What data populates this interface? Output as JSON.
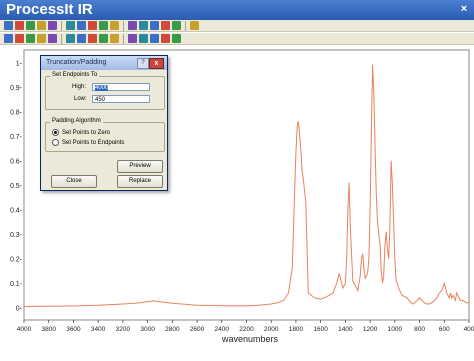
{
  "window": {
    "title": "ProcessIt IR",
    "close_glyph": "×"
  },
  "toolbar_row1": [
    "save-icon",
    "open-icon",
    "print-icon",
    "copy-icon",
    "cut-icon",
    "paste-icon",
    "undo-icon",
    "redo-icon",
    "zoom-in-icon",
    "zoom-out-icon",
    "pan-icon",
    "cursor-icon",
    "peak-icon",
    "baseline-icon",
    "integrate-icon",
    "close-icon"
  ],
  "toolbar_row2": [
    "arrow-icon",
    "grid-icon",
    "overlay-icon",
    "stack-icon",
    "color-icon",
    "label-icon",
    "flip-icon",
    "scale-icon",
    "smooth-icon",
    "derivative-icon",
    "bar-icon",
    "table-icon",
    "export-icon",
    "report-icon",
    "help-icon"
  ],
  "dialog": {
    "title": "Truncation/Padding",
    "help_glyph": "?",
    "close_glyph": "x",
    "endpoints_group": "Set Endpoints To",
    "high_label": "High:",
    "high_value": "4000",
    "low_label": "Low:",
    "low_value": "450",
    "padding_group": "Padding Algorithm",
    "radio_zero": "Set Points to Zero",
    "radio_endpoints": "Set Points to Endpoints",
    "preview_label": "Preview",
    "close_label": "Close",
    "replace_label": "Replace"
  },
  "chart_data": {
    "type": "line",
    "xlabel": "wavenumbers",
    "ylabel": "",
    "xlim": [
      4000,
      400
    ],
    "ylim": [
      -0.05,
      1.05
    ],
    "x_reversed": true,
    "xticks": [
      4000,
      3800,
      3600,
      3400,
      3200,
      3000,
      2800,
      2600,
      2400,
      2200,
      2000,
      1800,
      1600,
      1400,
      1200,
      1000,
      800,
      600,
      400
    ],
    "yticks": [
      0,
      0.1,
      0.2,
      0.3,
      0.4,
      0.5,
      0.6,
      0.7,
      0.8,
      0.9,
      1
    ],
    "ytick_labels": [
      "0-",
      "0.1-",
      "0.2-",
      "0.3-",
      "0.4-",
      "0.5-",
      "0.6-",
      "0.7-",
      "0.8-",
      "0.9-",
      "1-"
    ],
    "grid": false,
    "series_color": "#e8835a",
    "series": [
      {
        "x": [
          4000,
          3800,
          3600,
          3400,
          3200,
          3100,
          3000,
          2950,
          2900,
          2800,
          2600,
          2400,
          2200,
          2100,
          2000,
          1950,
          1900,
          1860,
          1830,
          1800,
          1790,
          1780,
          1770,
          1760,
          1750,
          1740,
          1720,
          1700,
          1650,
          1600,
          1550,
          1500,
          1470,
          1450,
          1440,
          1420,
          1400,
          1390,
          1380,
          1370,
          1360,
          1340,
          1300,
          1280,
          1270,
          1260,
          1250,
          1240,
          1220,
          1210,
          1200,
          1190,
          1180,
          1170,
          1160,
          1150,
          1140,
          1130,
          1120,
          1110,
          1100,
          1090,
          1080,
          1070,
          1060,
          1050,
          1040,
          1030,
          1020,
          1010,
          1000,
          990,
          980,
          970,
          960,
          940,
          900,
          870,
          850,
          840,
          820,
          800,
          780,
          760,
          740,
          720,
          700,
          680,
          660,
          640,
          620,
          600,
          590,
          580,
          570,
          560,
          550,
          540,
          530,
          520,
          510,
          500,
          490,
          480,
          470,
          460,
          450,
          420,
          400
        ],
        "y": [
          0.005,
          0.006,
          0.007,
          0.01,
          0.015,
          0.018,
          0.025,
          0.028,
          0.024,
          0.018,
          0.01,
          0.008,
          0.008,
          0.01,
          0.015,
          0.02,
          0.03,
          0.06,
          0.16,
          0.63,
          0.74,
          0.76,
          0.7,
          0.64,
          0.56,
          0.52,
          0.43,
          0.06,
          0.04,
          0.035,
          0.045,
          0.06,
          0.1,
          0.14,
          0.12,
          0.08,
          0.1,
          0.2,
          0.4,
          0.51,
          0.33,
          0.11,
          0.07,
          0.13,
          0.2,
          0.22,
          0.16,
          0.12,
          0.14,
          0.2,
          0.4,
          0.7,
          0.99,
          0.88,
          0.65,
          0.46,
          0.35,
          0.3,
          0.26,
          0.15,
          0.1,
          0.13,
          0.25,
          0.31,
          0.24,
          0.2,
          0.33,
          0.6,
          0.5,
          0.35,
          0.2,
          0.11,
          0.1,
          0.08,
          0.07,
          0.05,
          0.04,
          0.02,
          0.015,
          0.02,
          0.03,
          0.04,
          0.03,
          0.02,
          0.015,
          0.015,
          0.02,
          0.03,
          0.04,
          0.06,
          0.07,
          0.1,
          0.08,
          0.06,
          0.05,
          0.04,
          0.06,
          0.04,
          0.05,
          0.04,
          0.03,
          0.06,
          0.05,
          0.04,
          0.03,
          0.03,
          0.03,
          0.02,
          0.02
        ]
      }
    ]
  }
}
